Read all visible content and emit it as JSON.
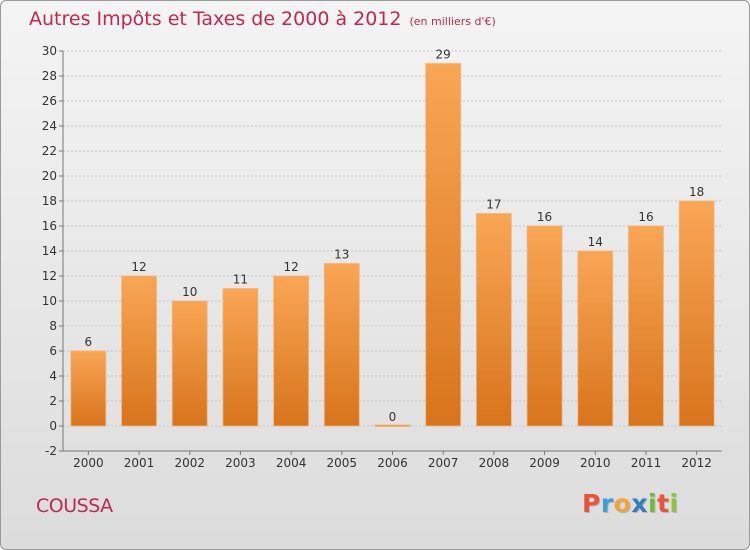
{
  "header": {
    "title": "Autres Impôts et Taxes de 2000 à 2012",
    "unit": "(en milliers d'€)"
  },
  "footer": {
    "town": "COUSSA",
    "logo_text": "Proxiti",
    "logo_colors": [
      "#e8533a",
      "#3aa0d8",
      "#f2a43a",
      "#2f7fc0",
      "#6fb93b",
      "#e8533a",
      "#8cc63f"
    ]
  },
  "colors": {
    "bar_light": "#f9a655",
    "bar_dark": "#d8741c",
    "title": "#c0294f",
    "axis": "#555555"
  },
  "chart_data": {
    "type": "bar",
    "title": "Autres Impôts et Taxes de 2000 à 2012",
    "subtitle": "(en milliers d'€)",
    "categories": [
      "2000",
      "2001",
      "2002",
      "2003",
      "2004",
      "2005",
      "2006",
      "2007",
      "2008",
      "2009",
      "2010",
      "2011",
      "2012"
    ],
    "values": [
      6,
      12,
      10,
      11,
      12,
      13,
      0,
      29,
      17,
      16,
      14,
      16,
      18
    ],
    "data_labels": [
      "6",
      "12",
      "10",
      "11",
      "12",
      "13",
      "0",
      "29",
      "17",
      "16",
      "14",
      "16",
      "18"
    ],
    "ylim": [
      -2,
      30
    ],
    "yticks": [
      -2,
      0,
      2,
      4,
      6,
      8,
      10,
      12,
      14,
      16,
      18,
      20,
      22,
      24,
      26,
      28,
      30
    ],
    "grid": true,
    "legend": "none"
  }
}
